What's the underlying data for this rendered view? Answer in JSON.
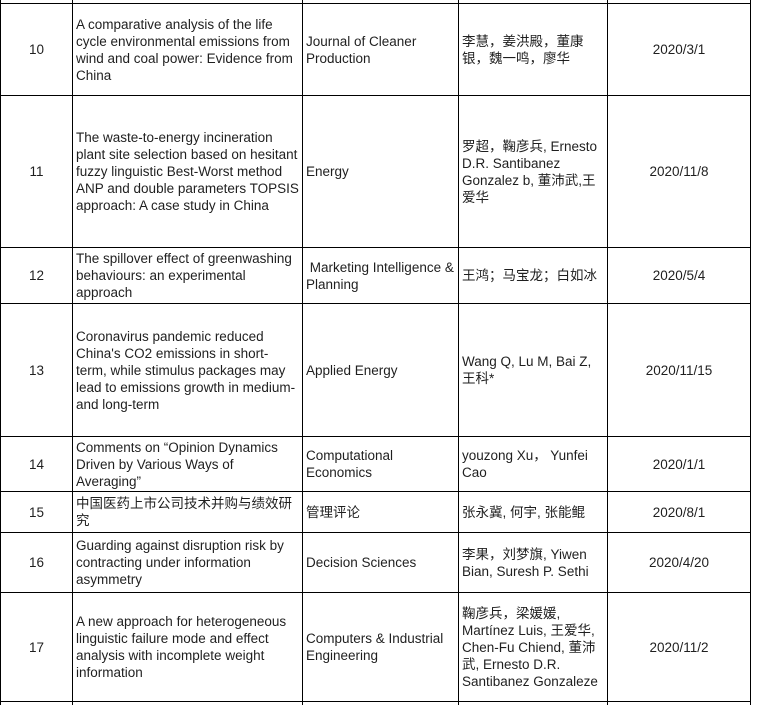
{
  "table": {
    "rows": [
      {
        "num": "10",
        "title": "A comparative analysis of the life cycle environmental emissions from wind and coal power: Evidence from China",
        "journal": "Journal of Cleaner Production",
        "authors": "李慧，姜洪殿，董康银，魏一鸣，廖华",
        "date": "2020/3/1"
      },
      {
        "num": "11",
        "title": "The waste-to-energy incineration plant site selection based on hesitant fuzzy linguistic Best-Worst method ANP and double parameters TOPSIS approach: A case study in China",
        "journal": "Energy",
        "authors": "罗超，鞠彦兵, Ernesto D.R. Santibanez Gonzalez b, 董沛武,王爱华",
        "date": "2020/11/8"
      },
      {
        "num": "12",
        "title": "The spillover effect of greenwashing behaviours: an experimental approach",
        "journal": " Marketing Intelligence & Planning",
        "authors": "王鸿；马宝龙；白如冰",
        "date": "2020/5/4"
      },
      {
        "num": "13",
        "title": "Coronavirus pandemic reduced China's CO2 emissions in short-term, while stimulus packages may lead to emissions growth in medium- and long-term",
        "journal": "Applied Energy",
        "authors": "Wang Q, Lu M, Bai Z, 王科*",
        "date": "2020/11/15"
      },
      {
        "num": "14",
        "title": "Comments on “Opinion Dynamics Driven by Various Ways of Averaging”",
        "journal": "Computational Economics",
        "authors": "youzong Xu， Yunfei Cao",
        "date": "2020/1/1"
      },
      {
        "num": "15",
        "title": "中国医药上市公司技术并购与绩效研究",
        "journal": "管理评论",
        "authors": "张永冀, 何宇, 张能鲲",
        "date": "2020/8/1"
      },
      {
        "num": "16",
        "title": "Guarding against disruption risk by contracting under information asymmetry",
        "journal": "Decision Sciences",
        "authors": "李果，刘梦旗, Yiwen Bian, Suresh P. Sethi",
        "date": "2020/4/20"
      },
      {
        "num": "17",
        "title": "A new approach for heterogeneous linguistic failure mode and effect analysis with incomplete weight information",
        "journal": "Computers & Industrial Engineering",
        "authors": "鞠彦兵，梁媛媛, Martínez Luis, 王爱华, Chen-Fu Chiend, 董沛武, Ernesto D.R. Santibanez Gonzaleze",
        "date": "2020/11/2"
      }
    ],
    "colors": {
      "border": "#000000",
      "text": "#1f1f1f",
      "background": "#ffffff"
    }
  }
}
